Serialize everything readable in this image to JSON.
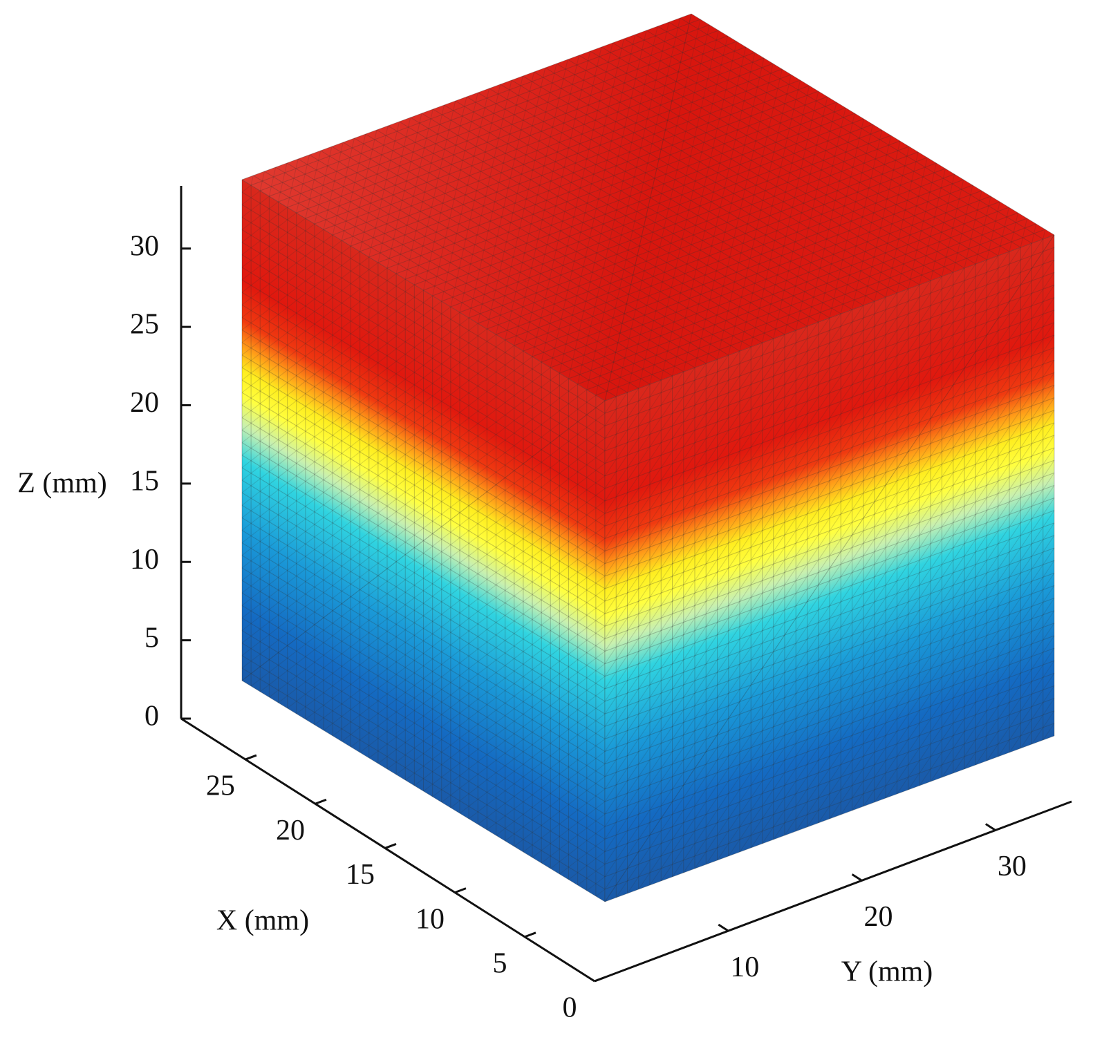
{
  "chart_data": {
    "type": "3d-mesh",
    "x_label": "X (mm)",
    "y_label": "Y (mm)",
    "z_label": "Z (mm)",
    "xlim": [
      0,
      29.6
    ],
    "xticks": [
      0,
      5,
      10,
      15,
      20,
      25
    ],
    "ylim": [
      0,
      35.7
    ],
    "yticks": [
      10,
      20,
      30
    ],
    "zlim": [
      0,
      34
    ],
    "zticks": [
      0,
      5,
      10,
      15,
      20,
      25,
      30
    ]
  }
}
